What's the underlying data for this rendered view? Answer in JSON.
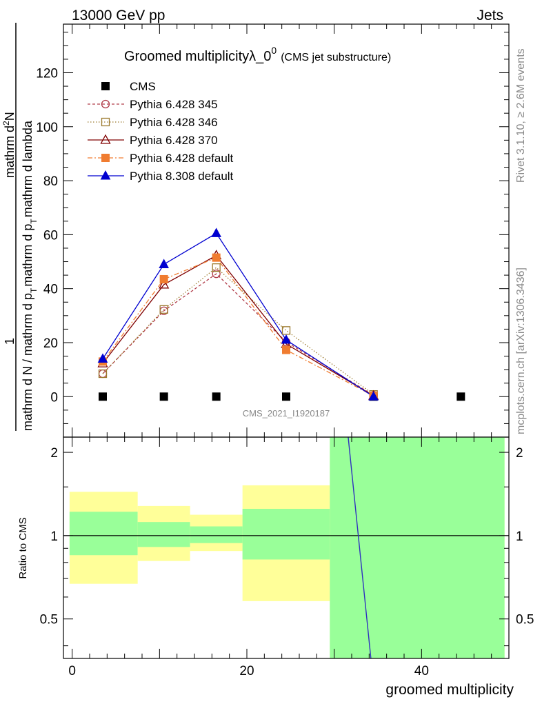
{
  "header": {
    "left": "13000 GeV pp",
    "right": "Jets"
  },
  "side_labels": {
    "rivet": "Rivet 3.1.10, ≥ 2.6M events",
    "mcplots": "mcplots.cern.ch [arXiv:1306.3436]"
  },
  "chart_data": [
    {
      "type": "line",
      "title": "Groomed multiplicityλ_0",
      "title_sup": "0",
      "subtitle": "(CMS jet substructure)",
      "watermark": "CMS_2021_I1920187",
      "ylabel": {
        "one": "1",
        "den": "mathrm d N / mathrm d p_T mathrm d p_T mathrm d lambda",
        "num": "mathrm d²N",
        "den_parts": [
          "mathrm d N / mathrm d p",
          "T",
          "mathrm d p",
          "T",
          "mathrm d lambda"
        ],
        "num_parts": [
          "mathrm d",
          "2",
          "N"
        ]
      },
      "xlim": [
        -1,
        50
      ],
      "ylim": [
        -15,
        138
      ],
      "yticks": [
        "0",
        "20",
        "40",
        "60",
        "80",
        "100",
        "120"
      ],
      "ytick_values": [
        0,
        20,
        40,
        60,
        80,
        100,
        120
      ],
      "legend_position": "top-left",
      "series": [
        {
          "name": "CMS",
          "style": "data",
          "color": "#000000",
          "marker": "square-filled",
          "x": [
            3.5,
            10.5,
            16.5,
            24.5,
            34.5,
            44.5
          ],
          "y": [
            0,
            0,
            0,
            0,
            0,
            0
          ]
        },
        {
          "name": "Pythia 6.428 345",
          "color": "#b03a48",
          "dash": "4,3",
          "marker": "circle-open",
          "x": [
            3.5,
            10.5,
            16.5,
            24.5,
            34.5
          ],
          "y": [
            8.5,
            31.8,
            45.5,
            20.3,
            0.5
          ]
        },
        {
          "name": "Pythia 6.428 346",
          "color": "#9c7a2e",
          "dash": "1.5,2.5",
          "marker": "square-open",
          "x": [
            3.5,
            10.5,
            16.5,
            24.5,
            34.5
          ],
          "y": [
            8.5,
            32.3,
            47.8,
            24.5,
            0.8
          ]
        },
        {
          "name": "Pythia 6.428 370",
          "color": "#800000",
          "dash": "",
          "marker": "triangle-open",
          "x": [
            3.5,
            10.5,
            16.5,
            24.5,
            34.5
          ],
          "y": [
            12.3,
            41.5,
            52.3,
            19.5,
            0.3
          ]
        },
        {
          "name": "Pythia 6.428 default",
          "color": "#f07c30",
          "dash": "7,3,2,3",
          "marker": "square-filled",
          "x": [
            3.5,
            10.5,
            16.5,
            24.5,
            34.5
          ],
          "y": [
            13.0,
            43.5,
            51.5,
            17.3,
            0.3
          ]
        },
        {
          "name": "Pythia 8.308 default",
          "color": "#0000d0",
          "dash": "",
          "marker": "triangle-filled",
          "x": [
            3.5,
            10.5,
            16.5,
            24.5,
            34.5
          ],
          "y": [
            14.0,
            49.0,
            60.5,
            21.0,
            0.0
          ]
        }
      ]
    },
    {
      "type": "area",
      "ylabel": "Ratio to CMS",
      "xlabel": "groomed multiplicity",
      "xlim": [
        -1,
        50
      ],
      "ylim": [
        0.36,
        2.27
      ],
      "y_scale": "log",
      "xticks": [
        "0",
        "20",
        "40"
      ],
      "xtick_values": [
        0,
        20,
        40
      ],
      "yticks": [
        "0.5",
        "1",
        "2"
      ],
      "ytick_values": [
        0.5,
        1,
        2
      ],
      "bands": [
        {
          "x0": -0.3,
          "x1": 7.5,
          "stat": [
            0.85,
            1.22
          ],
          "total": [
            0.67,
            1.44
          ]
        },
        {
          "x0": 7.5,
          "x1": 13.5,
          "stat": [
            0.91,
            1.12
          ],
          "total": [
            0.81,
            1.28
          ]
        },
        {
          "x0": 13.5,
          "x1": 19.5,
          "stat": [
            0.94,
            1.08
          ],
          "total": [
            0.88,
            1.19
          ]
        },
        {
          "x0": 19.5,
          "x1": 29.5,
          "stat": [
            0.82,
            1.25
          ],
          "total": [
            0.58,
            1.52
          ]
        },
        {
          "x0": 29.5,
          "x1": 49.5,
          "stat": [
            0.3,
            2.4
          ],
          "total": [
            0.3,
            2.4
          ]
        }
      ],
      "colors": {
        "stat": "#99ff99",
        "total": "#ffff99"
      },
      "ratio_line": {
        "color": "#3030c0",
        "points": [
          [
            31.6,
            2.27
          ],
          [
            34.2,
            0.36
          ]
        ]
      }
    }
  ]
}
